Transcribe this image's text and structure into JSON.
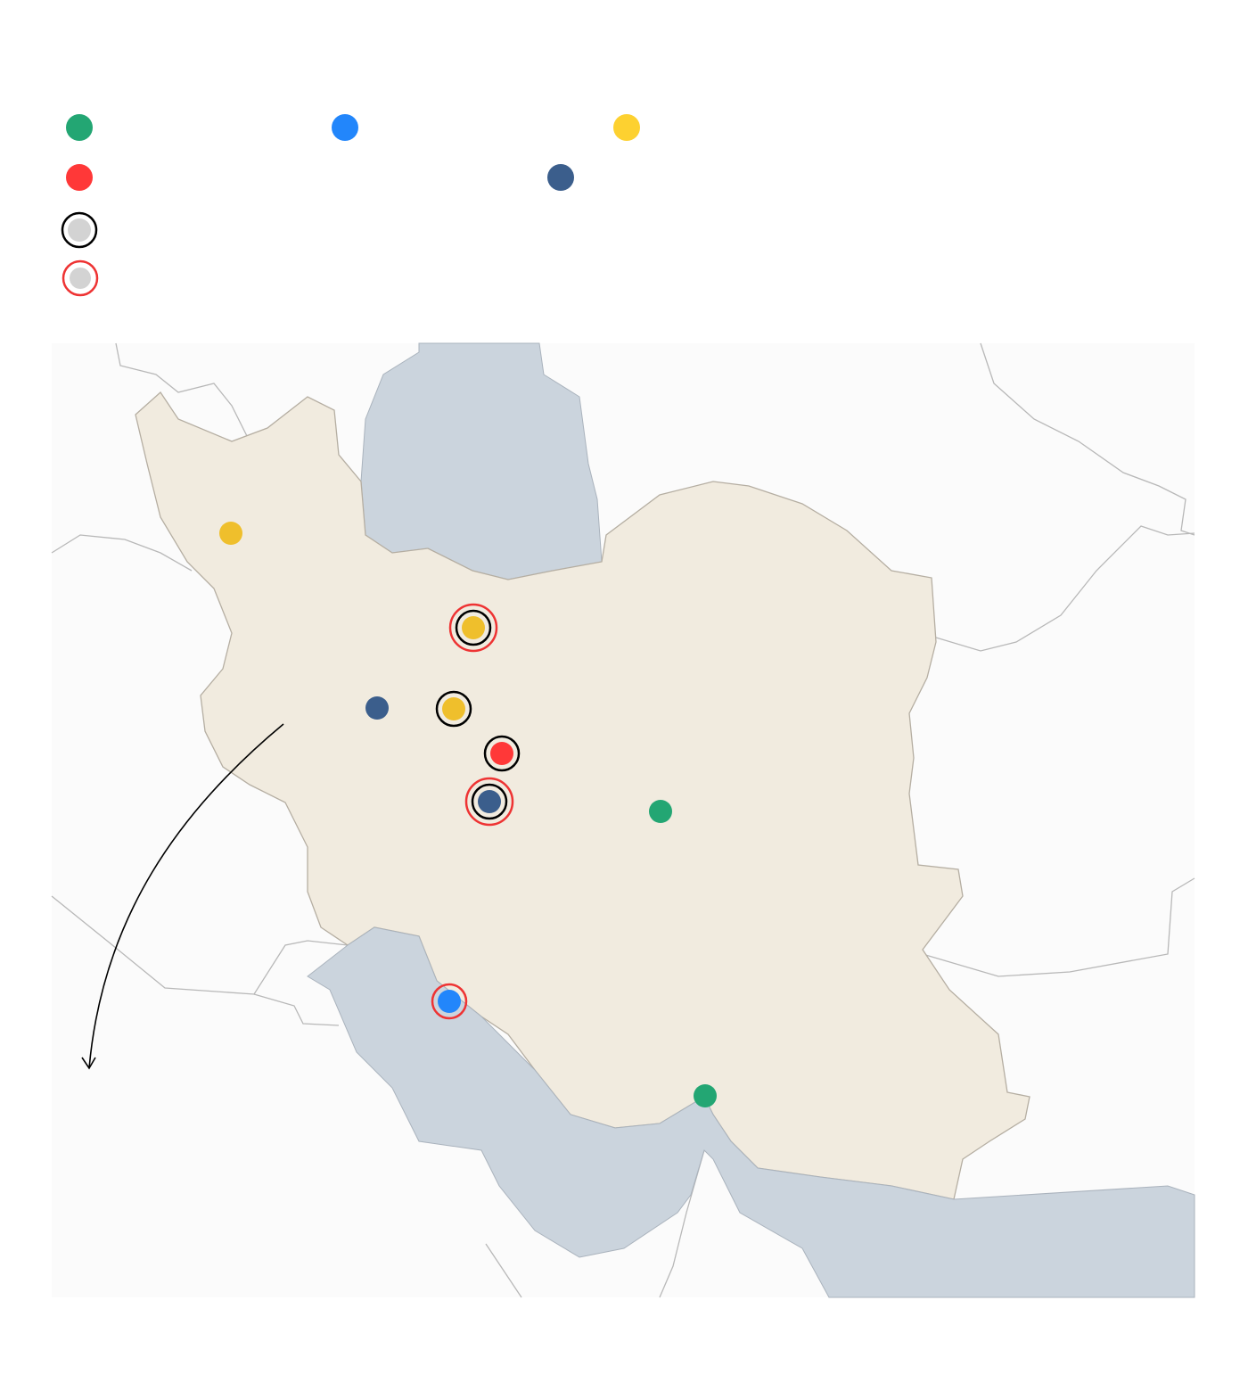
{
  "colors": {
    "green": "#23a673",
    "blue": "#2286fb",
    "yellow": "#fdd130",
    "red": "#ff3838",
    "navy": "#3b5e8c",
    "gray_fill": "#d3d3d3",
    "ring_black": "#000000",
    "ring_red": "#ee3333",
    "land_iran": "#f1ebdf",
    "land_other": "#fbfbfb",
    "water": "#cbd4dd",
    "border": "#b5b5b5"
  },
  "legend": {
    "items": [
      {
        "category": "green"
      },
      {
        "category": "blue"
      },
      {
        "category": "yellow"
      },
      {
        "category": "red"
      },
      {
        "category": "navy"
      },
      {
        "category": "black-ring"
      },
      {
        "category": "red-ring"
      }
    ]
  },
  "markers": [
    {
      "category": "yellow"
    },
    {
      "category": "yellow",
      "rings": [
        "black",
        "red"
      ]
    },
    {
      "category": "navy"
    },
    {
      "category": "yellow",
      "rings": [
        "black"
      ]
    },
    {
      "category": "red",
      "rings": [
        "black"
      ]
    },
    {
      "category": "navy",
      "rings": [
        "black",
        "red"
      ]
    },
    {
      "category": "green"
    },
    {
      "category": "blue",
      "rings": [
        "red"
      ]
    },
    {
      "category": "green"
    }
  ]
}
